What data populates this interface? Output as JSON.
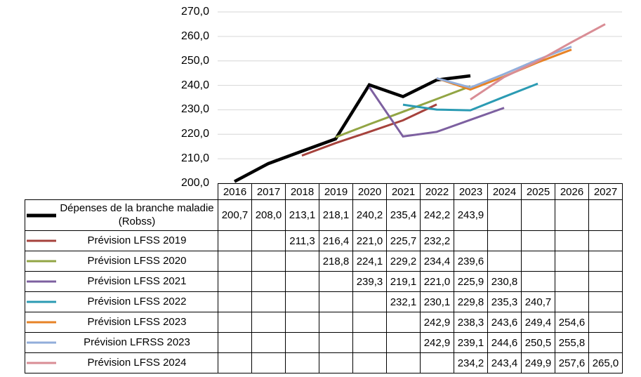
{
  "chart_data": {
    "type": "line",
    "title": "",
    "xlabel": "",
    "ylabel": "",
    "grid": true,
    "legend_position": "data-table-left",
    "ylim": [
      200,
      270
    ],
    "ytick_step": 10,
    "ytick_labels": [
      "270,0",
      "260,0",
      "250,0",
      "240,0",
      "230,0",
      "220,0",
      "210,0",
      "200,0"
    ],
    "x_categories": [
      "2016",
      "2017",
      "2018",
      "2019",
      "2020",
      "2021",
      "2022",
      "2023",
      "2024",
      "2025",
      "2026",
      "2027"
    ],
    "series": [
      {
        "name": "Dépenses de la branche maladie (Robss)",
        "color": "#000000",
        "stroke_width": 4.5,
        "values": [
          "200,7",
          "208,0",
          "213,1",
          "218,1",
          "240,2",
          "235,4",
          "242,2",
          "243,9",
          "",
          "",
          "",
          ""
        ]
      },
      {
        "name": "Prévision LFSS 2019",
        "color": "#a6423c",
        "stroke_width": 3,
        "values": [
          "",
          "",
          "211,3",
          "216,4",
          "221,0",
          "225,7",
          "232,2",
          "",
          "",
          "",
          "",
          ""
        ]
      },
      {
        "name": "Prévision LFSS 2020",
        "color": "#92a544",
        "stroke_width": 3,
        "values": [
          "",
          "",
          "",
          "218,8",
          "224,1",
          "229,2",
          "234,4",
          "239,6",
          "",
          "",
          "",
          ""
        ]
      },
      {
        "name": "Prévision LFSS 2021",
        "color": "#7d60a0",
        "stroke_width": 3,
        "values": [
          "",
          "",
          "",
          "",
          "239,3",
          "219,1",
          "221,0",
          "225,9",
          "230,8",
          "",
          "",
          ""
        ]
      },
      {
        "name": "Prévision LFSS 2022",
        "color": "#2b9bb3",
        "stroke_width": 3,
        "values": [
          "",
          "",
          "",
          "",
          "",
          "232,1",
          "230,1",
          "229,8",
          "235,3",
          "240,7",
          "",
          ""
        ]
      },
      {
        "name": "Prévision LFSS 2023",
        "color": "#e78327",
        "stroke_width": 3,
        "values": [
          "",
          "",
          "",
          "",
          "",
          "",
          "242,9",
          "238,3",
          "243,6",
          "249,4",
          "254,6",
          ""
        ]
      },
      {
        "name": "Prévision LFRSS 2023",
        "color": "#92aedb",
        "stroke_width": 3,
        "values": [
          "",
          "",
          "",
          "",
          "",
          "",
          "242,9",
          "239,1",
          "244,6",
          "250,5",
          "255,8",
          ""
        ]
      },
      {
        "name": "Prévision LFSS 2024",
        "color": "#d98d95",
        "stroke_width": 3,
        "values": [
          "",
          "",
          "",
          "",
          "",
          "",
          "",
          "234,2",
          "243,4",
          "249,9",
          "257,6",
          "265,0"
        ]
      }
    ]
  }
}
